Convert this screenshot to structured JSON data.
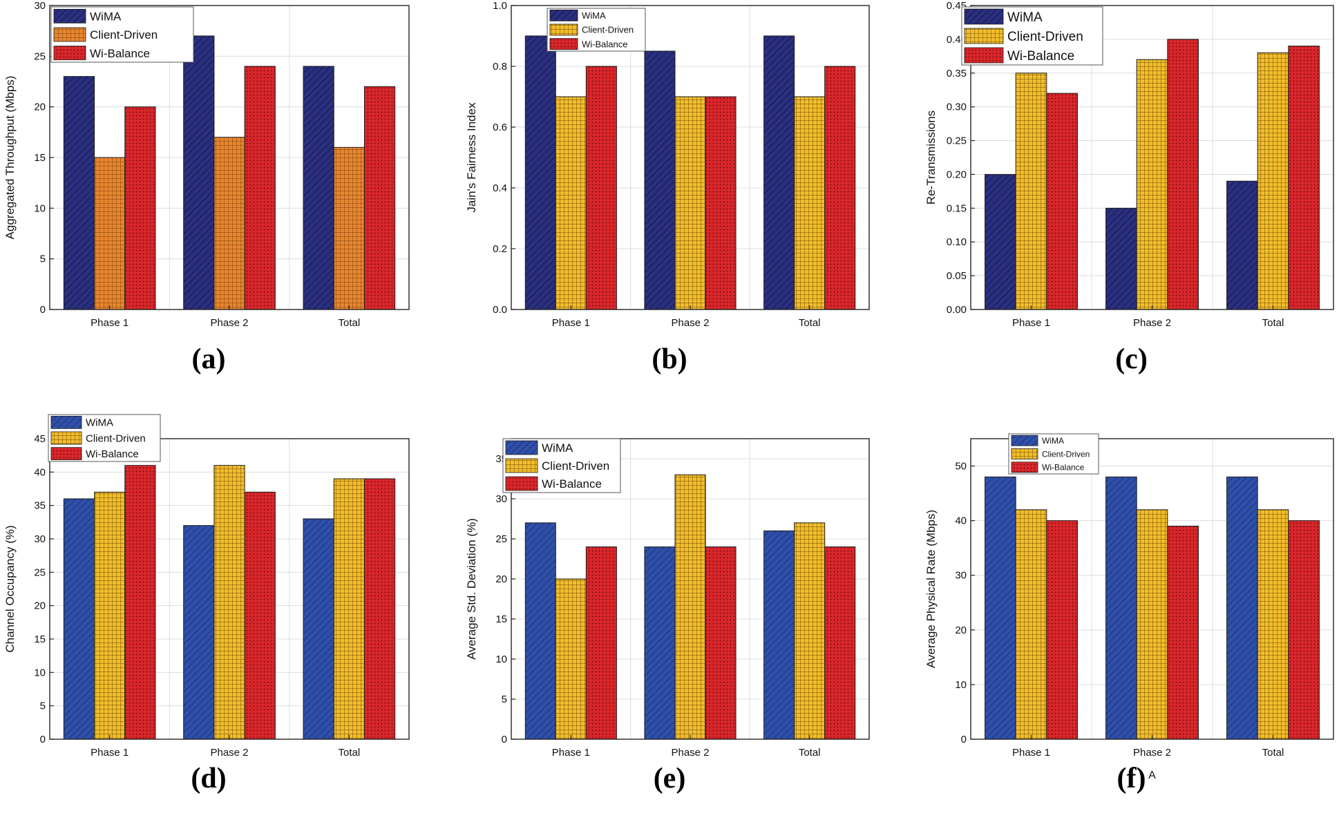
{
  "colors": {
    "wima_dark": "#2a2f7e",
    "wima_light": "#2f4fa8",
    "client_orange": "#e8862e",
    "client_yellow": "#f2bd2a",
    "wibalance": "#d9262a",
    "grid": "#dcdcdc",
    "axis": "#222222"
  },
  "chart_data": [
    {
      "panel": "(a)",
      "type": "bar",
      "categories": [
        "Phase 1",
        "Phase 2",
        "Total"
      ],
      "series": [
        {
          "name": "WiMA",
          "values": [
            23,
            27,
            24
          ]
        },
        {
          "name": "Client-Driven",
          "values": [
            15,
            17,
            16
          ]
        },
        {
          "name": "Wi-Balance",
          "values": [
            20,
            24,
            22
          ]
        }
      ],
      "ylabel": "Aggregated Throughput (Mbps)",
      "xlabel": "",
      "ylim": [
        0,
        30
      ],
      "yticks": [
        "0",
        "5",
        "10",
        "15",
        "20",
        "25",
        "30"
      ],
      "grid": true,
      "legend": "top-left"
    },
    {
      "panel": "(b)",
      "type": "bar",
      "categories": [
        "Phase 1",
        "Phase 2",
        "Total"
      ],
      "series": [
        {
          "name": "WiMA",
          "values": [
            0.9,
            0.85,
            0.9
          ]
        },
        {
          "name": "Client-Driven",
          "values": [
            0.7,
            0.7,
            0.7
          ]
        },
        {
          "name": "Wi-Balance",
          "values": [
            0.8,
            0.7,
            0.8
          ]
        }
      ],
      "ylabel": "Jain's Fairness Index",
      "xlabel": "",
      "ylim": [
        0,
        1.0
      ],
      "yticks": [
        "0.0",
        "0.2",
        "0.4",
        "0.6",
        "0.8",
        "1.0"
      ],
      "grid": true,
      "legend": "top-left"
    },
    {
      "panel": "(c)",
      "type": "bar",
      "categories": [
        "Phase 1",
        "Phase 2",
        "Total"
      ],
      "series": [
        {
          "name": "WiMA",
          "values": [
            0.2,
            0.15,
            0.19
          ]
        },
        {
          "name": "Client-Driven",
          "values": [
            0.35,
            0.37,
            0.38
          ]
        },
        {
          "name": "Wi-Balance",
          "values": [
            0.32,
            0.4,
            0.39
          ]
        }
      ],
      "ylabel": "Re-Transmissions",
      "xlabel": "",
      "ylim": [
        0,
        0.45
      ],
      "yticks": [
        "0.00",
        "0.05",
        "0.10",
        "0.15",
        "0.20",
        "0.25",
        "0.30",
        "0.35",
        "0.40",
        "0.45"
      ],
      "grid": true,
      "legend": "top-left"
    },
    {
      "panel": "(d)",
      "type": "bar",
      "categories": [
        "Phase 1",
        "Phase 2",
        "Total"
      ],
      "series": [
        {
          "name": "WiMA",
          "values": [
            36,
            32,
            33
          ]
        },
        {
          "name": "Client-Driven",
          "values": [
            37,
            41,
            39
          ]
        },
        {
          "name": "Wi-Balance",
          "values": [
            41,
            37,
            39
          ]
        }
      ],
      "ylabel": "Channel Occupancy (%)",
      "xlabel": "",
      "ylim": [
        0,
        45
      ],
      "yticks": [
        "0",
        "5",
        "10",
        "15",
        "20",
        "25",
        "30",
        "35",
        "40",
        "45"
      ],
      "grid": true,
      "legend": "top-left"
    },
    {
      "panel": "(e)",
      "type": "bar",
      "categories": [
        "Phase 1",
        "Phase 2",
        "Total"
      ],
      "series": [
        {
          "name": "WiMA",
          "values": [
            27,
            24,
            26
          ]
        },
        {
          "name": "Client-Driven",
          "values": [
            20,
            33,
            27
          ]
        },
        {
          "name": "Wi-Balance",
          "values": [
            24,
            24,
            24
          ]
        }
      ],
      "ylabel": "Average Std. Deviation (%)",
      "xlabel": "",
      "ylim": [
        0,
        37.5
      ],
      "yticks": [
        "0",
        "5",
        "10",
        "15",
        "20",
        "25",
        "30",
        "35"
      ],
      "grid": true,
      "legend": "top-left"
    },
    {
      "panel": "(f)",
      "type": "bar",
      "categories": [
        "Phase 1",
        "Phase 2",
        "Total"
      ],
      "series": [
        {
          "name": "WiMA",
          "values": [
            48,
            48,
            48
          ]
        },
        {
          "name": "Client-Driven",
          "values": [
            42,
            42,
            42
          ]
        },
        {
          "name": "Wi-Balance",
          "values": [
            40,
            39,
            40
          ]
        }
      ],
      "ylabel": "Average Physical Rate (Mbps)",
      "xlabel": "A",
      "ylim": [
        0,
        55
      ],
      "yticks": [
        "0",
        "10",
        "20",
        "30",
        "40",
        "50"
      ],
      "grid": true,
      "legend": "top-left"
    }
  ]
}
